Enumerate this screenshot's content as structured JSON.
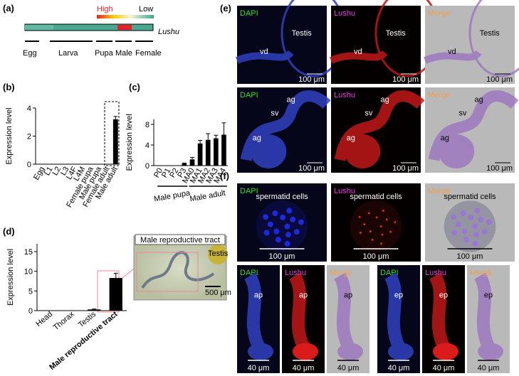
{
  "panel_labels": [
    "(a)",
    "(b)",
    "(c)",
    "(d)",
    "(e)",
    "(f)"
  ],
  "panel_a": {
    "legend_high": "High",
    "legend_low": "Low",
    "gene": "Lushu",
    "stages": [
      "Egg",
      "Larva",
      "Pupa",
      "Male",
      "Female"
    ]
  },
  "chart_data": [
    {
      "type": "bar",
      "ylabel": "Expression level",
      "categories": [
        "Egg",
        "L1",
        "L2",
        "L3",
        "L4F",
        "L4M",
        "Female pupa",
        "Male pupa",
        "Female adult",
        "Male adult"
      ],
      "values": [
        0,
        0,
        0,
        0,
        0,
        0,
        0,
        0,
        0,
        3.2
      ],
      "errors": [
        0,
        0,
        0,
        0,
        0,
        0,
        0,
        0,
        0,
        0.2
      ],
      "color": "#000000",
      "ylim": [
        0,
        4
      ],
      "yticks": [
        0,
        2,
        4
      ]
    },
    {
      "type": "bar",
      "ylabel": "Expression level",
      "categories": [
        "P0",
        "P1",
        "P2",
        "P3",
        "MA0",
        "MA1",
        "MA2",
        "MA3",
        "MA4"
      ],
      "values": [
        0,
        0,
        0,
        0.4,
        1.2,
        4.3,
        5.0,
        5.3,
        6.0
      ],
      "errors": [
        0,
        0,
        0,
        0.1,
        0.4,
        0.6,
        1.2,
        0.6,
        2.3
      ],
      "color": "#000000",
      "ylim": [
        0,
        9
      ],
      "yticks": [
        0,
        4,
        8
      ],
      "groups": [
        {
          "name": "Male pupa",
          "categories": [
            "P0",
            "P1",
            "P2",
            "P3"
          ]
        },
        {
          "name": "Male adult",
          "categories": [
            "MA0",
            "MA1",
            "MA2",
            "MA3",
            "MA4"
          ]
        }
      ]
    },
    {
      "type": "bar",
      "ylabel": "Expression level",
      "categories": [
        "Head",
        "Thorax",
        "Testis",
        "Male reproductive tract"
      ],
      "values": [
        0,
        0,
        0.3,
        8.3
      ],
      "errors": [
        0,
        0,
        0.1,
        1.2
      ],
      "color": "#000000",
      "ylim": [
        0,
        17
      ],
      "yticks": [
        0,
        5,
        10,
        15
      ]
    }
  ],
  "panel_d_inset": {
    "title": "Male reproductive tract",
    "label": "Testis",
    "scale": "500 μm"
  },
  "panel_e": [
    [
      {
        "channel": "DAPI",
        "labels": [
          "Testis",
          "vd"
        ],
        "scale": "100 μm"
      },
      {
        "channel": "Lushu",
        "labels": [
          "Testis",
          "vd"
        ],
        "scale": "100 μm"
      },
      {
        "channel": "Merge",
        "labels": [
          "Testis",
          "vd"
        ],
        "scale": "100 μm"
      }
    ],
    [
      {
        "channel": "DAPI",
        "labels": [
          "ag",
          "sv",
          "ag"
        ],
        "scale": "100 μm"
      },
      {
        "channel": "Lushu",
        "labels": [
          "ag",
          "sv",
          "ag"
        ],
        "scale": "100 μm"
      },
      {
        "channel": "Merge",
        "labels": [
          "ag",
          "sv",
          "ag"
        ],
        "scale": "100 μm"
      }
    ]
  ],
  "panel_f": [
    [
      {
        "channel": "DAPI",
        "labels": [
          "spermatid cells"
        ],
        "scale": "100 μm"
      },
      {
        "channel": "Lushu",
        "labels": [
          "spermatid cells"
        ],
        "scale": "100 μm"
      },
      {
        "channel": "Merge",
        "labels": [
          "spermatid cells"
        ],
        "scale": "100 μm"
      }
    ],
    [
      {
        "channel": "DAPI",
        "labels": [
          "ap"
        ],
        "scale": "40 μm"
      },
      {
        "channel": "Lushu",
        "labels": [
          "ap"
        ],
        "scale": "40 μm"
      },
      {
        "channel": "Merge",
        "labels": [
          "ap"
        ],
        "scale": "40 μm"
      },
      {
        "channel": "DAPI",
        "labels": [
          "ep"
        ],
        "scale": "40 μm"
      },
      {
        "channel": "Lushu",
        "labels": [
          "ep"
        ],
        "scale": "40 μm"
      },
      {
        "channel": "Merge",
        "labels": [
          "ep"
        ],
        "scale": "40 μm"
      }
    ]
  ]
}
